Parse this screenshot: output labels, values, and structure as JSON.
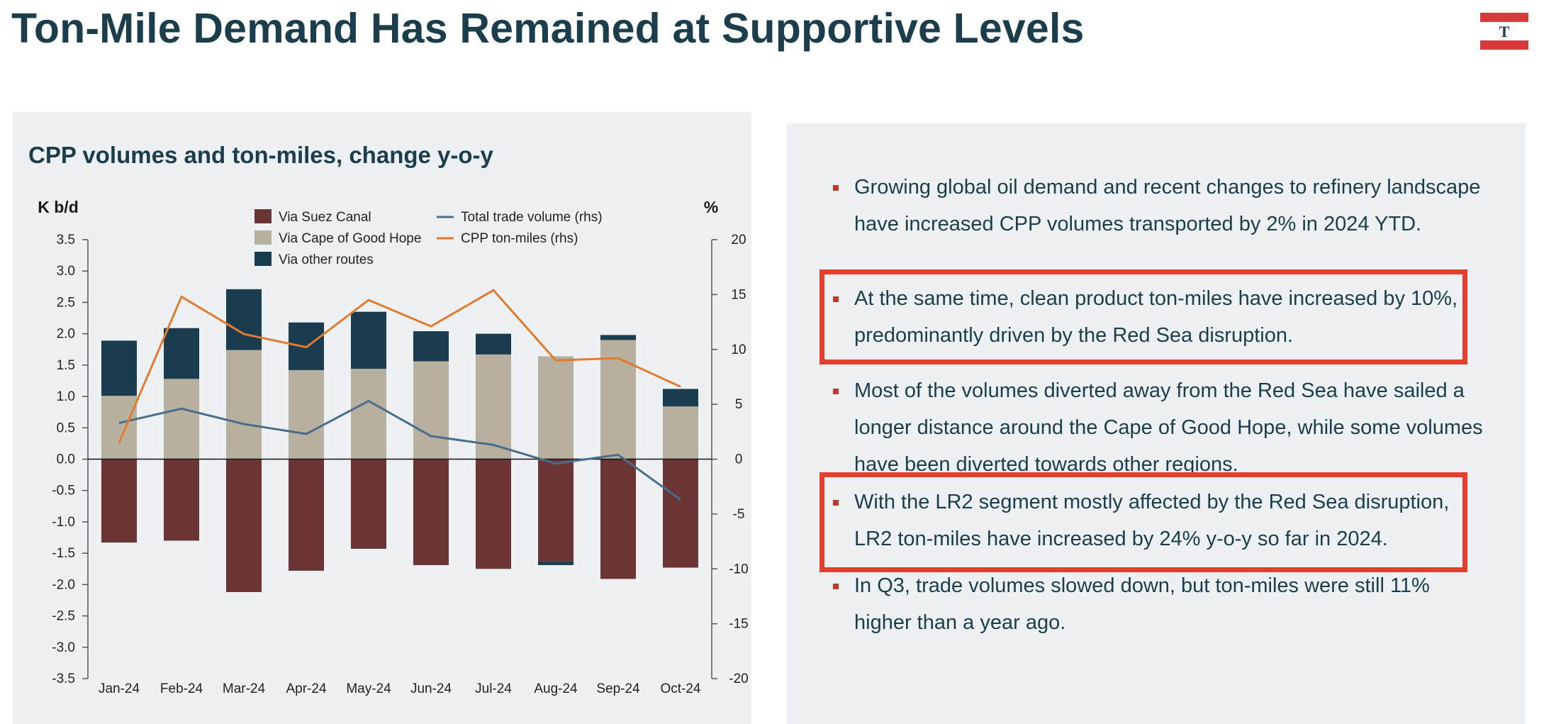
{
  "header": {
    "title": "Ton-Mile Demand Has Remained at Supportive Levels",
    "logo_letter": "T"
  },
  "colors": {
    "title": "#1c3d4c",
    "suez": "#6b3535",
    "cape": "#b7b09e",
    "other": "#1b3c4e",
    "trade_line": "#4a6d8c",
    "ton_miles_line": "#e07b30",
    "highlight": "#e2402c",
    "logo_red": "#d63a3a"
  },
  "chart_data": {
    "type": "bar",
    "title": "CPP volumes and ton-miles, change y-o-y",
    "ylabel": "K b/d",
    "y2label": "%",
    "ylim": [
      -3.5,
      3.5
    ],
    "y2lim": [
      -20,
      20
    ],
    "yticks": [
      "3.5",
      "3.0",
      "2.5",
      "2.0",
      "1.5",
      "1.0",
      "0.5",
      "0.0",
      "-0.5",
      "-1.0",
      "-1.5",
      "-2.0",
      "-2.5",
      "-3.0",
      "-3.5"
    ],
    "y2ticks": [
      "20",
      "15",
      "10",
      "5",
      "0",
      "-5",
      "-10",
      "-15",
      "-20"
    ],
    "categories": [
      "Jan-24",
      "Feb-24",
      "Mar-24",
      "Apr-24",
      "May-24",
      "Jun-24",
      "Jul-24",
      "Aug-24",
      "Sep-24",
      "Oct-24"
    ],
    "series": [
      {
        "name": "Via Suez Canal",
        "kind": "bar",
        "axis": "left",
        "values": [
          -1.33,
          -1.3,
          -2.12,
          -1.78,
          -1.43,
          -1.69,
          -1.75,
          -1.63,
          -1.91,
          -1.73
        ]
      },
      {
        "name": "Via Cape of Good Hope",
        "kind": "bar",
        "axis": "left",
        "values": [
          1.01,
          1.28,
          1.74,
          1.42,
          1.44,
          1.56,
          1.67,
          1.64,
          1.9,
          0.84
        ]
      },
      {
        "name": "Via other routes",
        "kind": "bar",
        "axis": "left",
        "values": [
          0.88,
          0.81,
          0.97,
          0.76,
          0.91,
          0.48,
          0.33,
          -0.06,
          0.08,
          0.28
        ]
      },
      {
        "name": "Total trade volume (rhs)",
        "kind": "line",
        "axis": "right",
        "values": [
          3.3,
          4.6,
          3.2,
          2.3,
          5.3,
          2.1,
          1.3,
          -0.4,
          0.4,
          -3.7
        ]
      },
      {
        "name": "CPP ton-miles (rhs)",
        "kind": "line",
        "axis": "right",
        "values": [
          1.5,
          14.8,
          11.4,
          10.2,
          14.5,
          12.1,
          15.4,
          9.0,
          9.2,
          6.6
        ]
      }
    ],
    "legend": "top"
  },
  "bullets": [
    {
      "text": "Growing global oil demand and recent changes to refinery landscape have increased CPP volumes transported by 2% in 2024 YTD."
    },
    {
      "text": "At the same time, clean product ton-miles have increased by 10%, predominantly driven by the Red Sea disruption."
    },
    {
      "text": "Most of the volumes diverted away from the Red Sea have sailed a longer distance around the Cape of Good Hope, while some volumes have been diverted towards other regions."
    },
    {
      "text": "With the LR2 segment mostly affected by the Red Sea disruption, LR2 ton-miles have increased by 24% y-o-y so far in 2024."
    },
    {
      "text": "In Q3, trade volumes slowed down, but ton-miles were still 11% higher than a year ago."
    }
  ]
}
